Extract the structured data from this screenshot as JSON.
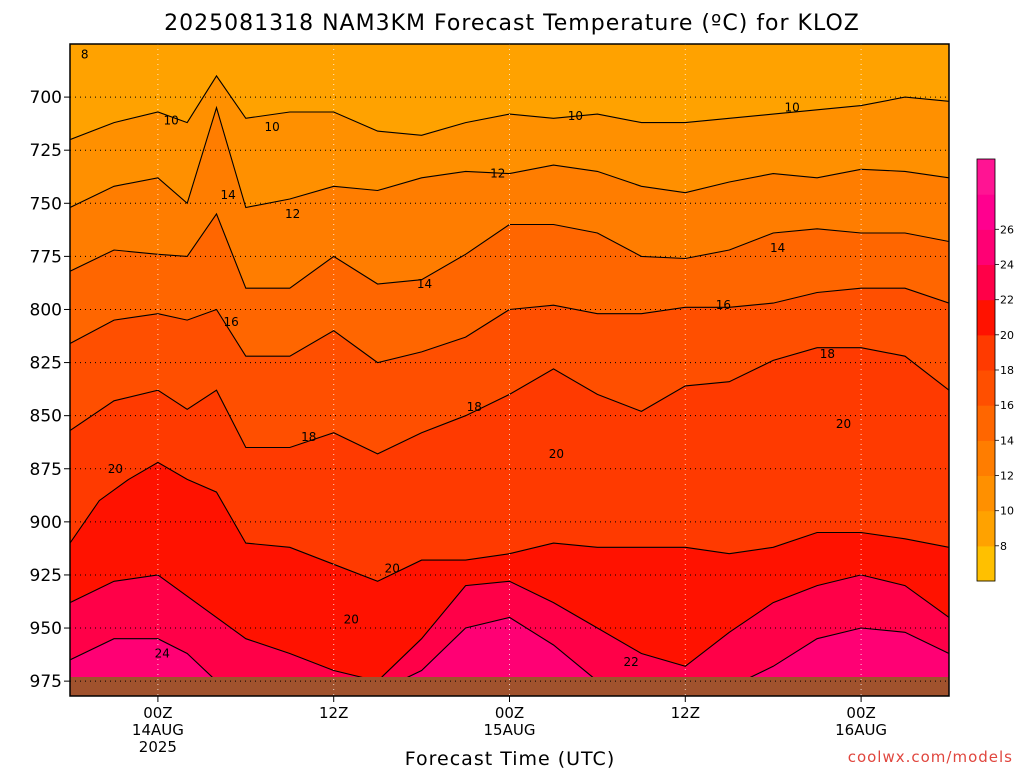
{
  "title": "2025081318 NAM3KM Forecast Temperature (ºC) for KLOZ",
  "credit": "coolwx.com/models",
  "chart_data": {
    "type": "heatmap",
    "title": "2025081318 NAM3KM Forecast Temperature (ºC) for KLOZ",
    "xlabel": "Forecast Time (UTC)",
    "ylabel": "",
    "x_range_hours": [
      0,
      60
    ],
    "y_range_hpa": [
      675,
      982
    ],
    "y_ticks": [
      700,
      725,
      750,
      775,
      800,
      825,
      850,
      875,
      900,
      925,
      950,
      975
    ],
    "y_tick_labels": [
      "700",
      "725",
      "750",
      "775",
      "800",
      "825",
      "850",
      "875",
      "900",
      "925",
      "950",
      "975"
    ],
    "x_ticks": [
      {
        "hour": 6,
        "lines": [
          "00Z",
          "14AUG",
          "2025"
        ]
      },
      {
        "hour": 18,
        "lines": [
          "12Z"
        ]
      },
      {
        "hour": 30,
        "lines": [
          "00Z",
          "15AUG"
        ]
      },
      {
        "hour": 42,
        "lines": [
          "12Z"
        ]
      },
      {
        "hour": 54,
        "lines": [
          "00Z",
          "16AUG"
        ]
      }
    ],
    "grid": true,
    "colorbar": {
      "levels": [
        6,
        8,
        10,
        12,
        14,
        16,
        18,
        20,
        22,
        24,
        26,
        28
      ],
      "tick_labels": [
        "8",
        "10",
        "12",
        "14",
        "16",
        "18",
        "20",
        "22",
        "24",
        "26"
      ],
      "colors": [
        "#ffc000",
        "#ffa200",
        "#ff9000",
        "#ff7d00",
        "#ff6600",
        "#ff4f00",
        "#ff3a00",
        "#ff1200",
        "#ff0048",
        "#ff0074",
        "#ff008f",
        "#ff1493"
      ]
    },
    "contours": [
      {
        "level": 10,
        "x": [
          0,
          3,
          6,
          8,
          10,
          12,
          15,
          18,
          21,
          24,
          27,
          30,
          33,
          36,
          39,
          42,
          45,
          48,
          51,
          54,
          57,
          60
        ],
        "p": [
          720,
          712,
          707,
          712,
          690,
          710,
          707,
          707,
          716,
          718,
          712,
          708,
          710,
          708,
          712,
          712,
          710,
          708,
          706,
          704,
          700,
          702
        ]
      },
      {
        "level": 12,
        "x": [
          0,
          3,
          6,
          8,
          10,
          12,
          15,
          18,
          21,
          24,
          27,
          30,
          33,
          36,
          39,
          42,
          45,
          48,
          51,
          54,
          57,
          60
        ],
        "p": [
          752,
          742,
          738,
          750,
          705,
          752,
          748,
          742,
          744,
          738,
          735,
          736,
          732,
          735,
          742,
          745,
          740,
          736,
          738,
          734,
          735,
          738
        ]
      },
      {
        "level": 14,
        "x": [
          0,
          3,
          6,
          8,
          10,
          12,
          15,
          18,
          21,
          24,
          27,
          30,
          33,
          36,
          39,
          42,
          45,
          48,
          51,
          54,
          57,
          60
        ],
        "p": [
          782,
          772,
          774,
          775,
          755,
          790,
          790,
          775,
          788,
          786,
          774,
          760,
          760,
          764,
          775,
          776,
          772,
          764,
          762,
          764,
          764,
          768
        ]
      },
      {
        "level": 16,
        "x": [
          0,
          3,
          6,
          8,
          10,
          12,
          15,
          18,
          21,
          24,
          27,
          30,
          33,
          36,
          39,
          42,
          45,
          48,
          51,
          54,
          57,
          60
        ],
        "p": [
          816,
          805,
          802,
          805,
          800,
          822,
          822,
          810,
          825,
          820,
          813,
          800,
          798,
          802,
          802,
          799,
          799,
          797,
          792,
          790,
          790,
          797
        ]
      },
      {
        "level": 18,
        "x": [
          0,
          3,
          6,
          8,
          10,
          12,
          15,
          18,
          21,
          24,
          27,
          30,
          33,
          36,
          39,
          42,
          45,
          48,
          51,
          54,
          57,
          60
        ],
        "p": [
          857,
          843,
          838,
          847,
          838,
          865,
          865,
          858,
          868,
          858,
          850,
          840,
          828,
          840,
          848,
          836,
          834,
          824,
          818,
          818,
          822,
          838
        ]
      },
      {
        "level": 20,
        "x": [
          0,
          2,
          4,
          6,
          8,
          10,
          12,
          15,
          18,
          21,
          24,
          27,
          30,
          33,
          36,
          39,
          42,
          45,
          48,
          51,
          54,
          57,
          60
        ],
        "p": [
          910,
          890,
          880,
          872,
          880,
          886,
          910,
          912,
          920,
          928,
          918,
          918,
          915,
          910,
          912,
          912,
          912,
          915,
          912,
          905,
          905,
          908,
          912
        ]
      },
      {
        "level": 22,
        "x": [
          0,
          3,
          6,
          8,
          10,
          12,
          15,
          18,
          21,
          24,
          27,
          30,
          33,
          36,
          39,
          42,
          45,
          48,
          51,
          54,
          57,
          60
        ],
        "p": [
          938,
          928,
          925,
          935,
          945,
          955,
          962,
          970,
          975,
          955,
          930,
          928,
          938,
          950,
          962,
          968,
          952,
          938,
          930,
          925,
          930,
          945
        ]
      },
      {
        "level": 24,
        "x": [
          0,
          3,
          6,
          8,
          10,
          12,
          15,
          18,
          21,
          24,
          27,
          30,
          33,
          36,
          39,
          42,
          45,
          48,
          51,
          54,
          57,
          60
        ],
        "p": [
          965,
          955,
          955,
          962,
          975,
          980,
          980,
          980,
          980,
          970,
          950,
          945,
          958,
          975,
          980,
          980,
          978,
          968,
          955,
          950,
          952,
          962
        ]
      }
    ],
    "labels": [
      {
        "text": "8",
        "x": 1.0,
        "p": 680
      },
      {
        "text": "10",
        "x": 6.9,
        "p": 711
      },
      {
        "text": "10",
        "x": 13.8,
        "p": 714
      },
      {
        "text": "10",
        "x": 34.5,
        "p": 709
      },
      {
        "text": "10",
        "x": 49.3,
        "p": 705
      },
      {
        "text": "14",
        "x": 10.8,
        "p": 746
      },
      {
        "text": "12",
        "x": 15.2,
        "p": 755
      },
      {
        "text": "12",
        "x": 29.2,
        "p": 736
      },
      {
        "text": "14",
        "x": 24.2,
        "p": 788
      },
      {
        "text": "14",
        "x": 48.3,
        "p": 771
      },
      {
        "text": "16",
        "x": 11.0,
        "p": 806
      },
      {
        "text": "16",
        "x": 44.6,
        "p": 798
      },
      {
        "text": "18",
        "x": 51.7,
        "p": 821
      },
      {
        "text": "18",
        "x": 16.3,
        "p": 860
      },
      {
        "text": "18",
        "x": 27.6,
        "p": 846
      },
      {
        "text": "20",
        "x": 3.1,
        "p": 875
      },
      {
        "text": "20",
        "x": 33.2,
        "p": 868
      },
      {
        "text": "20",
        "x": 52.8,
        "p": 854
      },
      {
        "text": "20",
        "x": 22.0,
        "p": 922
      },
      {
        "text": "20",
        "x": 19.2,
        "p": 946
      },
      {
        "text": "22",
        "x": 38.3,
        "p": 966
      },
      {
        "text": "24",
        "x": 6.3,
        "p": 962
      }
    ]
  }
}
